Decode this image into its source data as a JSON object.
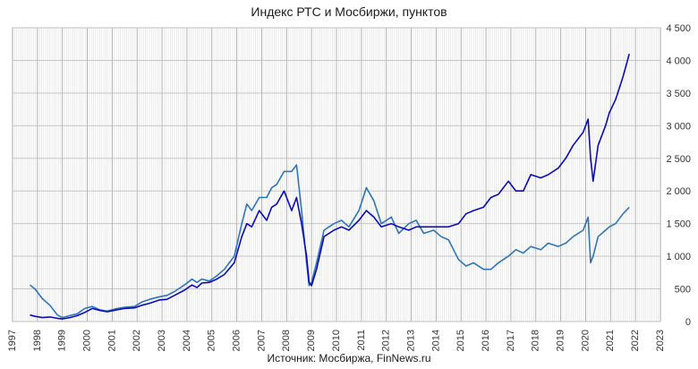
{
  "chart_data": {
    "type": "line",
    "title": "Индекс РТС и Мосбиржи, пунктов",
    "source": "Источник: Мосбиржа, FinNews.ru",
    "xlim": [
      1997,
      2023
    ],
    "ylim": [
      0,
      4500
    ],
    "x_ticks": [
      "1997",
      "1998",
      "1999",
      "2000",
      "2001",
      "2002",
      "2003",
      "2004",
      "2005",
      "2006",
      "2007",
      "2008",
      "2009",
      "2010",
      "2011",
      "2012",
      "2013",
      "2014",
      "2015",
      "2016",
      "2017",
      "2018",
      "2019",
      "2020",
      "2021",
      "2022",
      "2023"
    ],
    "y_ticks": [
      {
        "value": 0,
        "label": "0"
      },
      {
        "value": 500,
        "label": "500"
      },
      {
        "value": 1000,
        "label": "1 000"
      },
      {
        "value": 1500,
        "label": "1 500"
      },
      {
        "value": 2000,
        "label": "2 000"
      },
      {
        "value": 2500,
        "label": "2 500"
      },
      {
        "value": 3000,
        "label": "3 000"
      },
      {
        "value": 3500,
        "label": "3 500"
      },
      {
        "value": 4000,
        "label": "4 000"
      },
      {
        "value": 4500,
        "label": "4 500"
      }
    ],
    "grid": true,
    "series": [
      {
        "color": "#0a0ab8",
        "x": [
          1997.7,
          1997.9,
          1998.2,
          1998.5,
          1998.8,
          1999.0,
          1999.3,
          1999.6,
          1999.9,
          2000.2,
          2000.5,
          2000.8,
          2001.2,
          2001.5,
          2001.9,
          2002.2,
          2002.5,
          2002.9,
          2003.2,
          2003.5,
          2003.9,
          2004.2,
          2004.4,
          2004.6,
          2004.9,
          2005.2,
          2005.5,
          2005.9,
          2006.2,
          2006.4,
          2006.6,
          2006.9,
          2007.2,
          2007.4,
          2007.6,
          2007.9,
          2008.2,
          2008.4,
          2008.6,
          2008.8,
          2008.9,
          2009.0,
          2009.2,
          2009.5,
          2009.9,
          2010.2,
          2010.5,
          2010.9,
          2011.2,
          2011.5,
          2011.8,
          2012.2,
          2012.5,
          2012.9,
          2013.2,
          2013.5,
          2013.9,
          2014.2,
          2014.5,
          2014.9,
          2015.2,
          2015.5,
          2015.9,
          2016.2,
          2016.5,
          2016.9,
          2017.2,
          2017.5,
          2017.8,
          2018.2,
          2018.5,
          2018.9,
          2019.2,
          2019.5,
          2019.9,
          2020.1,
          2020.2,
          2020.3,
          2020.5,
          2020.8,
          2020.95,
          2021.2,
          2021.5,
          2021.75
        ],
        "values": [
          100,
          80,
          60,
          70,
          50,
          40,
          60,
          90,
          140,
          200,
          170,
          150,
          180,
          200,
          210,
          250,
          280,
          330,
          340,
          400,
          480,
          560,
          520,
          590,
          600,
          650,
          720,
          900,
          1300,
          1500,
          1450,
          1700,
          1550,
          1750,
          1800,
          2000,
          1700,
          1900,
          1500,
          1000,
          600,
          550,
          800,
          1300,
          1400,
          1450,
          1400,
          1550,
          1700,
          1600,
          1450,
          1500,
          1450,
          1400,
          1450,
          1450,
          1450,
          1450,
          1450,
          1500,
          1650,
          1700,
          1750,
          1900,
          1950,
          2150,
          2000,
          2000,
          2250,
          2200,
          2250,
          2350,
          2500,
          2700,
          2900,
          3100,
          2500,
          2150,
          2700,
          3000,
          3200,
          3400,
          3750,
          4100
        ]
      },
      {
        "color": "#2e75b6",
        "x": [
          1997.7,
          1997.9,
          1998.2,
          1998.5,
          1998.8,
          1999.0,
          1999.3,
          1999.6,
          1999.9,
          2000.2,
          2000.5,
          2000.8,
          2001.2,
          2001.5,
          2001.9,
          2002.2,
          2002.5,
          2002.9,
          2003.2,
          2003.5,
          2003.9,
          2004.2,
          2004.4,
          2004.6,
          2004.9,
          2005.2,
          2005.5,
          2005.9,
          2006.2,
          2006.4,
          2006.6,
          2006.9,
          2007.2,
          2007.4,
          2007.6,
          2007.9,
          2008.2,
          2008.4,
          2008.6,
          2008.8,
          2008.9,
          2009.0,
          2009.2,
          2009.5,
          2009.9,
          2010.2,
          2010.5,
          2010.9,
          2011.2,
          2011.5,
          2011.8,
          2012.2,
          2012.5,
          2012.9,
          2013.2,
          2013.5,
          2013.9,
          2014.2,
          2014.5,
          2014.9,
          2015.2,
          2015.5,
          2015.9,
          2016.2,
          2016.5,
          2016.9,
          2017.2,
          2017.5,
          2017.8,
          2018.2,
          2018.5,
          2018.9,
          2019.2,
          2019.5,
          2019.9,
          2020.1,
          2020.2,
          2020.3,
          2020.5,
          2020.8,
          2020.95,
          2021.2,
          2021.5,
          2021.75
        ],
        "values": [
          560,
          500,
          350,
          250,
          100,
          60,
          90,
          120,
          200,
          230,
          180,
          160,
          200,
          220,
          230,
          300,
          340,
          380,
          400,
          460,
          560,
          650,
          600,
          650,
          620,
          700,
          800,
          1000,
          1500,
          1800,
          1700,
          1900,
          1900,
          2050,
          2100,
          2300,
          2300,
          2400,
          1700,
          900,
          550,
          600,
          900,
          1400,
          1500,
          1550,
          1450,
          1700,
          2050,
          1850,
          1500,
          1600,
          1350,
          1500,
          1550,
          1350,
          1400,
          1300,
          1250,
          950,
          850,
          900,
          800,
          800,
          900,
          1000,
          1100,
          1050,
          1150,
          1100,
          1200,
          1150,
          1200,
          1300,
          1400,
          1600,
          900,
          1000,
          1300,
          1400,
          1450,
          1500,
          1650,
          1750
        ]
      }
    ]
  }
}
